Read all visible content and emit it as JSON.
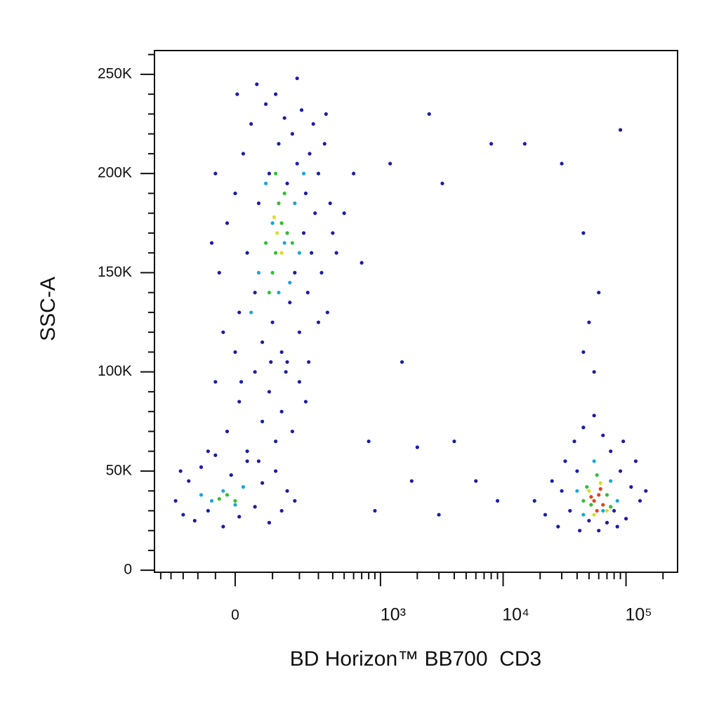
{
  "chart_data": {
    "type": "scatter",
    "xlabel": "BD Horizon™ BB700  CD3",
    "ylabel": "SSC-A",
    "xscale": "biexponential",
    "xlim": [
      -285,
      262800
    ],
    "ylim": [
      -1000,
      262000
    ],
    "xticks": [
      0,
      {
        "value": 1000,
        "label": "10³"
      },
      {
        "value": 10000,
        "label": "10⁴"
      },
      {
        "value": 100000,
        "label": "10⁵"
      }
    ],
    "xminorticks": [
      -250,
      -200,
      -150,
      -100,
      -50,
      100,
      200,
      300,
      400,
      500,
      600,
      700,
      800,
      900,
      2000,
      3000,
      4000,
      5000,
      6000,
      7000,
      8000,
      9000,
      20000,
      30000,
      40000,
      50000,
      60000,
      70000,
      80000,
      90000,
      200000
    ],
    "yticks": [
      0,
      {
        "value": 50000,
        "label": "50K"
      },
      {
        "value": 100000,
        "label": "100K"
      },
      {
        "value": 150000,
        "label": "150K"
      },
      {
        "value": 200000,
        "label": "200K"
      },
      {
        "value": 250000,
        "label": "250K"
      }
    ],
    "yminorticks": [
      10000,
      20000,
      30000,
      40000,
      60000,
      70000,
      80000,
      90000,
      110000,
      120000,
      130000,
      140000,
      160000,
      170000,
      180000,
      190000,
      210000,
      220000,
      230000,
      240000,
      260000
    ],
    "series": [
      {
        "color": "#1c1ca8",
        "x": [
          -40,
          -20,
          0,
          10,
          20,
          30,
          40,
          50,
          60,
          70,
          80,
          90,
          100,
          110,
          120,
          130,
          140,
          150,
          160,
          170,
          180,
          190,
          200,
          210,
          220,
          230,
          240,
          250,
          260,
          270,
          280,
          300,
          320,
          340,
          360,
          380,
          400,
          430,
          -60,
          -30,
          5,
          55,
          95,
          145,
          245,
          300,
          190,
          350,
          500,
          600,
          15,
          -50,
          -50,
          -20,
          10,
          30,
          50,
          70,
          90,
          110,
          130,
          150,
          170,
          200,
          230,
          -70,
          0,
          60,
          -180,
          -150,
          -130,
          -110,
          -90,
          -70,
          -50,
          -30,
          -10,
          10,
          30,
          50,
          70,
          90,
          110,
          130,
          150,
          -160,
          180,
          18000,
          22000,
          25000,
          28000,
          32000,
          35000,
          38000,
          42000,
          45000,
          50000,
          55000,
          60000,
          65000,
          70000,
          75000,
          80000,
          90000,
          100000,
          110000,
          130000,
          145000,
          120000,
          30000,
          85000,
          40000,
          95000,
          1200,
          2500,
          3200,
          8000,
          15000,
          30000,
          90000,
          45000,
          700,
          1500,
          4000,
          2000,
          6000,
          9000,
          3000,
          45000,
          55000,
          50000,
          60000,
          800,
          900,
          1800
        ],
        "values": [
          150000,
          175000,
          190000,
          130000,
          210000,
          160000,
          225000,
          140000,
          185000,
          115000,
          235000,
          200000,
          125000,
          240000,
          215000,
          110000,
          228000,
          195000,
          135000,
          220000,
          150000,
          205000,
          120000,
          232000,
          170000,
          190000,
          140000,
          210000,
          160000,
          225000,
          180000,
          200000,
          150000,
          215000,
          130000,
          185000,
          170000,
          160000,
          165000,
          120000,
          240000,
          245000,
          105000,
          100000,
          105000,
          125000,
          248000,
          230000,
          180000,
          200000,
          95000,
          200000,
          95000,
          70000,
          85000,
          60000,
          100000,
          75000,
          90000,
          65000,
          80000,
          105000,
          70000,
          95000,
          85000,
          60000,
          110000,
          55000,
          35000,
          28000,
          45000,
          25000,
          52000,
          30000,
          58000,
          22000,
          48000,
          27000,
          55000,
          32000,
          44000,
          24000,
          50000,
          30000,
          40000,
          50000,
          35000,
          35000,
          28000,
          45000,
          22000,
          55000,
          30000,
          65000,
          20000,
          72000,
          25000,
          78000,
          20000,
          68000,
          24000,
          60000,
          30000,
          50000,
          26000,
          42000,
          35000,
          40000,
          55000,
          40000,
          22000,
          50000,
          65000,
          205000,
          230000,
          195000,
          215000,
          215000,
          205000,
          222000,
          170000,
          155000,
          105000,
          65000,
          62000,
          45000,
          35000,
          28000,
          110000,
          100000,
          125000,
          140000,
          65000,
          30000,
          45000
        ]
      },
      {
        "color": "#18a8d8",
        "x": [
          60,
          100,
          140,
          120,
          180,
          200,
          80,
          220,
          40,
          160,
          -60,
          -30,
          0,
          20,
          -90,
          40000,
          45000,
          75000,
          85000,
          55000,
          65000
        ],
        "values": [
          150000,
          175000,
          165000,
          140000,
          185000,
          160000,
          195000,
          200000,
          130000,
          145000,
          35000,
          40000,
          33000,
          42000,
          38000,
          40000,
          28000,
          45000,
          35000,
          55000,
          30000
        ]
      },
      {
        "color": "#30c030",
        "x": [
          80,
          110,
          130,
          150,
          100,
          120,
          90,
          140,
          170,
          110,
          -40,
          -20,
          0,
          48000,
          52000,
          70000,
          58000,
          75000,
          45000
        ],
        "values": [
          165000,
          160000,
          175000,
          170000,
          150000,
          185000,
          140000,
          190000,
          165000,
          200000,
          36000,
          38000,
          35000,
          42000,
          33000,
          38000,
          48000,
          32000,
          35000
        ]
      },
      {
        "color": "#d8e020",
        "x": [
          115,
          130,
          105,
          50000,
          62000,
          70000,
          55000
        ],
        "values": [
          170000,
          160000,
          178000,
          40000,
          44000,
          30000,
          28000
        ]
      },
      {
        "color": "#e84018",
        "x": [
          55000,
          60000,
          65000,
          58000,
          52000,
          62000
        ],
        "values": [
          35000,
          38000,
          33000,
          30000,
          37000,
          41000
        ]
      }
    ]
  }
}
